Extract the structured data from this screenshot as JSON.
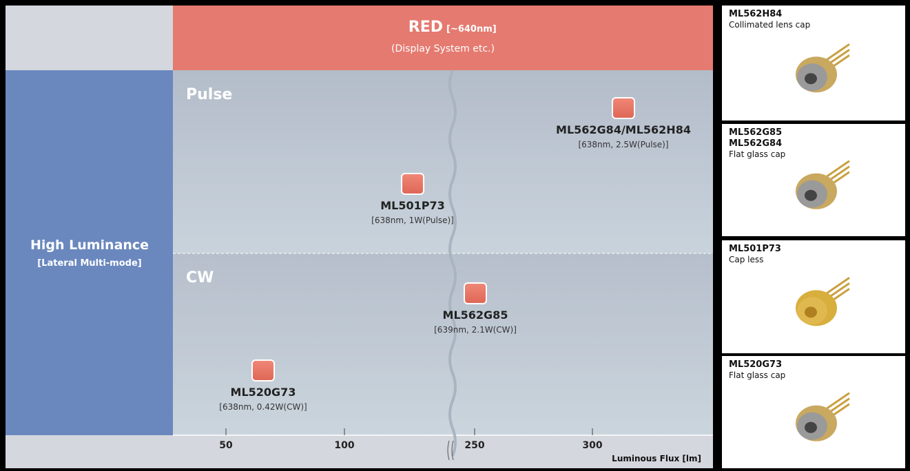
{
  "header": {
    "title": "RED",
    "range": "[~640nm]",
    "subtitle": "(Display System etc.)"
  },
  "category": {
    "title": "High Luminance",
    "subtitle": "[Lateral Multi-mode]"
  },
  "sections": [
    "Pulse",
    "CW"
  ],
  "products": [
    {
      "name": "ML562G84/ML562H84",
      "spec": "[638nm, 2.5W(Pulse)]"
    },
    {
      "name": "ML501P73",
      "spec": "[638nm, 1W(Pulse)]"
    },
    {
      "name": "ML562G85",
      "spec": "[639nm, 2.1W(CW)]"
    },
    {
      "name": "ML520G73",
      "spec": "[638nm, 0.42W(CW)]"
    }
  ],
  "axis": {
    "ticks": [
      "50",
      "100",
      "250",
      "300"
    ],
    "label": "Luminous Flux [lm]"
  },
  "cards": [
    {
      "names": [
        "ML562H84"
      ],
      "cap": "Collimated lens cap"
    },
    {
      "names": [
        "ML562G85",
        "ML562G84"
      ],
      "cap": "Flat glass cap"
    },
    {
      "names": [
        "ML501P73"
      ],
      "cap": "Cap less"
    },
    {
      "names": [
        "ML520G73"
      ],
      "cap": "Flat glass cap"
    }
  ]
}
